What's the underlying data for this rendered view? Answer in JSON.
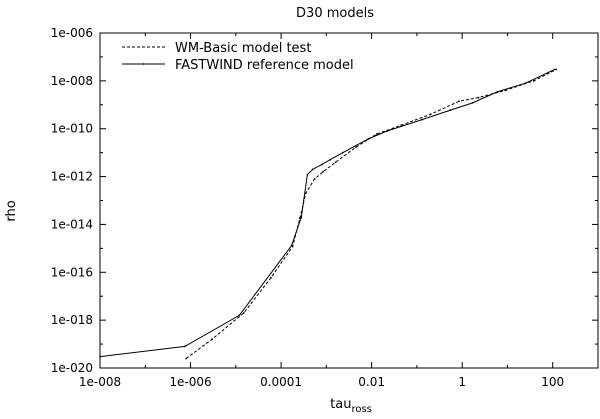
{
  "chart_data": {
    "type": "line",
    "title": "D30 models",
    "xlabel": "tau",
    "xlabel_subscript": "ross",
    "ylabel": "rho",
    "x_scale": "log",
    "y_scale": "log",
    "xlim": [
      1e-08,
      1000
    ],
    "ylim": [
      1e-20,
      1e-06
    ],
    "x_ticks": [
      1e-08,
      1e-06,
      0.0001,
      0.01,
      1,
      100
    ],
    "x_tick_labels": [
      "1e-008",
      "1e-006",
      "0.0001",
      "0.01",
      "1",
      "100"
    ],
    "y_ticks": [
      1e-20,
      1e-18,
      1e-16,
      1e-14,
      1e-12,
      1e-10,
      1e-08,
      1e-06
    ],
    "y_tick_labels": [
      "1e-020",
      "1e-018",
      "1e-016",
      "1e-014",
      "1e-012",
      "1e-010",
      "1e-008",
      "1e-006"
    ],
    "grid": false,
    "legend_position": "top-left",
    "series": [
      {
        "name": "WM-Basic model test",
        "style": "dashed",
        "color": "#000000",
        "x": [
          8e-07,
          3e-06,
          1.5e-05,
          6e-05,
          0.00018,
          0.00026,
          0.00035,
          0.00055,
          0.00085,
          0.0016,
          0.0045,
          0.013,
          0.045,
          0.2,
          0.85,
          2.3,
          9,
          38,
          120
        ],
        "y": [
          2.5e-20,
          1.6e-19,
          2e-18,
          6e-17,
          1.2e-15,
          1.8e-14,
          2e-13,
          8e-13,
          1.6e-12,
          4e-12,
          1.7e-11,
          6e-11,
          1.4e-10,
          4e-10,
          1.4e-09,
          2e-09,
          4e-09,
          1e-08,
          3e-08
        ]
      },
      {
        "name": "FASTWIND reference model",
        "style": "solid",
        "color": "#000000",
        "x": [
          1e-08,
          7.5e-07,
          1.2e-05,
          0.00017,
          0.00028,
          0.00038,
          0.0005,
          0.0008,
          0.0012,
          0.0023,
          0.0085,
          0.022,
          0.13,
          0.55,
          1.7,
          6,
          25,
          110
        ],
        "y": [
          3e-20,
          8e-20,
          1.6e-18,
          1.3e-15,
          2e-14,
          1.2e-12,
          2e-12,
          3.2e-12,
          5e-12,
          1e-11,
          3.8e-11,
          8e-11,
          2.4e-10,
          6e-10,
          1.2e-09,
          3.5e-09,
          8e-09,
          3e-08
        ]
      }
    ]
  }
}
